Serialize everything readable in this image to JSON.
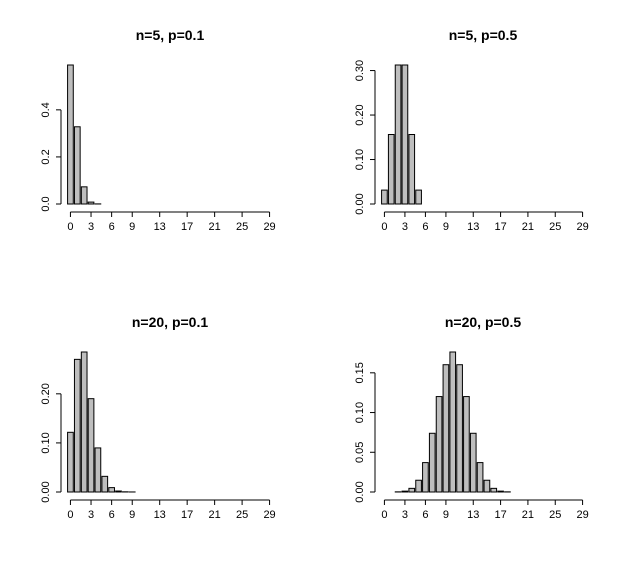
{
  "chart_data": [
    {
      "type": "bar",
      "title": "n=5, p=0.1",
      "xlabel": "",
      "ylabel": "",
      "colors": {
        "bar_fill": "#bebebe",
        "bar_stroke": "#000000",
        "axis": "#000000",
        "background": "#ffffff"
      },
      "categories": [
        0,
        1,
        2,
        3,
        4,
        5,
        6,
        7,
        8,
        9,
        10,
        11,
        12,
        13,
        14,
        15,
        16,
        17,
        18,
        19,
        20,
        21,
        22,
        23,
        24,
        25,
        26,
        27,
        28,
        29
      ],
      "values": [
        0.59049,
        0.32805,
        0.0729,
        0.0081,
        0.00045,
        1e-05,
        0,
        0,
        0,
        0,
        0,
        0,
        0,
        0,
        0,
        0,
        0,
        0,
        0,
        0,
        0,
        0,
        0,
        0,
        0,
        0,
        0,
        0,
        0,
        0
      ],
      "x_tick_labels": [
        "0",
        "3",
        "6",
        "9",
        "13",
        "17",
        "21",
        "25",
        "29"
      ],
      "y_ticks": [
        0.0,
        0.2,
        0.4
      ],
      "y_tick_labels": [
        "0.0",
        "0.2",
        "0.4"
      ],
      "ylim": [
        0,
        0.59049
      ],
      "grid": false,
      "legend": "none"
    },
    {
      "type": "bar",
      "title": "n=5, p=0.5",
      "xlabel": "",
      "ylabel": "",
      "colors": {
        "bar_fill": "#bebebe",
        "bar_stroke": "#000000",
        "axis": "#000000",
        "background": "#ffffff"
      },
      "categories": [
        0,
        1,
        2,
        3,
        4,
        5,
        6,
        7,
        8,
        9,
        10,
        11,
        12,
        13,
        14,
        15,
        16,
        17,
        18,
        19,
        20,
        21,
        22,
        23,
        24,
        25,
        26,
        27,
        28,
        29
      ],
      "values": [
        0.03125,
        0.15625,
        0.3125,
        0.3125,
        0.15625,
        0.03125,
        0,
        0,
        0,
        0,
        0,
        0,
        0,
        0,
        0,
        0,
        0,
        0,
        0,
        0,
        0,
        0,
        0,
        0,
        0,
        0,
        0,
        0,
        0,
        0
      ],
      "x_tick_labels": [
        "0",
        "3",
        "6",
        "9",
        "13",
        "17",
        "21",
        "25",
        "29"
      ],
      "y_ticks": [
        0.0,
        0.1,
        0.2,
        0.3
      ],
      "y_tick_labels": [
        "0.00",
        "0.10",
        "0.20",
        "0.30"
      ],
      "ylim": [
        0,
        0.3125
      ],
      "grid": false,
      "legend": "none"
    },
    {
      "type": "bar",
      "title": "n=20, p=0.1",
      "xlabel": "",
      "ylabel": "",
      "colors": {
        "bar_fill": "#bebebe",
        "bar_stroke": "#000000",
        "axis": "#000000",
        "background": "#ffffff"
      },
      "categories": [
        0,
        1,
        2,
        3,
        4,
        5,
        6,
        7,
        8,
        9,
        10,
        11,
        12,
        13,
        14,
        15,
        16,
        17,
        18,
        19,
        20,
        21,
        22,
        23,
        24,
        25,
        26,
        27,
        28,
        29
      ],
      "values": [
        0.1216,
        0.2702,
        0.2852,
        0.1901,
        0.0898,
        0.0319,
        0.0089,
        0.002,
        0.0004,
        0.0001,
        0,
        0,
        0,
        0,
        0,
        0,
        0,
        0,
        0,
        0,
        0,
        0,
        0,
        0,
        0,
        0,
        0,
        0,
        0,
        0
      ],
      "x_tick_labels": [
        "0",
        "3",
        "6",
        "9",
        "13",
        "17",
        "21",
        "25",
        "29"
      ],
      "y_ticks": [
        0.0,
        0.1,
        0.2
      ],
      "y_tick_labels": [
        "0.00",
        "0.10",
        "0.20"
      ],
      "ylim": [
        0,
        0.2852
      ],
      "grid": false,
      "legend": "none"
    },
    {
      "type": "bar",
      "title": "n=20, p=0.5",
      "xlabel": "",
      "ylabel": "",
      "colors": {
        "bar_fill": "#bebebe",
        "bar_stroke": "#000000",
        "axis": "#000000",
        "background": "#ffffff"
      },
      "categories": [
        0,
        1,
        2,
        3,
        4,
        5,
        6,
        7,
        8,
        9,
        10,
        11,
        12,
        13,
        14,
        15,
        16,
        17,
        18,
        19,
        20,
        21,
        22,
        23,
        24,
        25,
        26,
        27,
        28,
        29
      ],
      "values": [
        0,
        0,
        0.0002,
        0.0011,
        0.0046,
        0.0148,
        0.037,
        0.0739,
        0.1201,
        0.1602,
        0.1762,
        0.1602,
        0.1201,
        0.0739,
        0.037,
        0.0148,
        0.0046,
        0.0011,
        0.0002,
        0,
        0,
        0,
        0,
        0,
        0,
        0,
        0,
        0,
        0,
        0
      ],
      "x_tick_labels": [
        "0",
        "3",
        "6",
        "9",
        "13",
        "17",
        "21",
        "25",
        "29"
      ],
      "y_ticks": [
        0.0,
        0.05,
        0.1,
        0.15
      ],
      "y_tick_labels": [
        "0.00",
        "0.05",
        "0.10",
        "0.15"
      ],
      "ylim": [
        0,
        0.1762
      ],
      "grid": false,
      "legend": "none"
    }
  ]
}
